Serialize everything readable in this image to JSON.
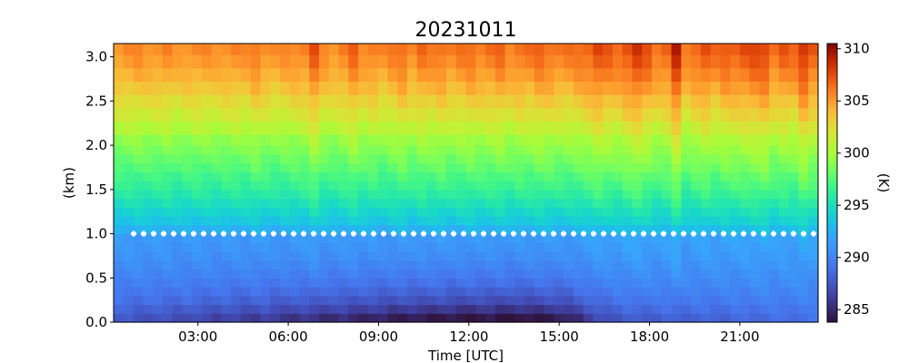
{
  "chart_data": {
    "type": "heatmap",
    "title": "20231011",
    "xlabel": "Time [UTC]",
    "ylabel": "(km)",
    "colorbar_label": "(K)",
    "colormap": "turbo",
    "x_range_hours": [
      0.2,
      23.6
    ],
    "x_ticks": [
      {
        "value": 3,
        "label": "03:00"
      },
      {
        "value": 6,
        "label": "06:00"
      },
      {
        "value": 9,
        "label": "09:00"
      },
      {
        "value": 12,
        "label": "12:00"
      },
      {
        "value": 15,
        "label": "15:00"
      },
      {
        "value": 18,
        "label": "18:00"
      },
      {
        "value": 21,
        "label": "21:00"
      }
    ],
    "y_range_km": [
      0,
      3.15
    ],
    "y_ticks": [
      {
        "value": 0.0,
        "label": "0.0"
      },
      {
        "value": 0.5,
        "label": "0.5"
      },
      {
        "value": 1.0,
        "label": "1.0"
      },
      {
        "value": 1.5,
        "label": "1.5"
      },
      {
        "value": 2.0,
        "label": "2.0"
      },
      {
        "value": 2.5,
        "label": "2.5"
      },
      {
        "value": 3.0,
        "label": "3.0"
      }
    ],
    "color_range_K": [
      283.8,
      310.5
    ],
    "colorbar_ticks": [
      {
        "value": 285,
        "label": "285"
      },
      {
        "value": 290,
        "label": "290"
      },
      {
        "value": 295,
        "label": "295"
      },
      {
        "value": 300,
        "label": "300"
      },
      {
        "value": 305,
        "label": "305"
      },
      {
        "value": 310,
        "label": "310"
      }
    ],
    "grid": false,
    "reference_line": {
      "y_km": 1.0,
      "style": "white dotted"
    },
    "levels_km": [
      0.05,
      0.15,
      0.25,
      0.35,
      0.45,
      0.55,
      0.65,
      0.75,
      0.85,
      0.95,
      1.05,
      1.15,
      1.25,
      1.35,
      1.45,
      1.55,
      1.65,
      1.75,
      1.85,
      1.95,
      2.05,
      2.2,
      2.35,
      2.5,
      2.65,
      2.8,
      2.95,
      3.1
    ],
    "time_steps": 72,
    "base_profile_K": [
      288.0,
      288.6,
      289.2,
      289.6,
      290.0,
      290.3,
      290.6,
      290.9,
      291.1,
      291.3,
      292.6,
      293.6,
      294.3,
      295.0,
      295.7,
      296.3,
      296.8,
      297.4,
      297.9,
      298.5,
      299.1,
      300.3,
      301.4,
      302.3,
      303.3,
      304.1,
      304.8,
      305.3
    ],
    "column_offset_K": [
      0.0,
      0.2,
      0.3,
      0.1,
      0.2,
      0.4,
      -0.2,
      0.1,
      0.3,
      0.2,
      0.0,
      0.3,
      0.4,
      0.2,
      0.9,
      0.3,
      0.0,
      0.3,
      0.5,
      0.6,
      2.0,
      0.4,
      0.1,
      0.6,
      1.5,
      0.4,
      0.8,
      0.2,
      0.7,
      1.3,
      0.4,
      1.2,
      0.8,
      1.2,
      0.6,
      0.9,
      1.2,
      0.8,
      1.0,
      1.4,
      0.6,
      1.1,
      1.0,
      1.5,
      1.2,
      0.9,
      0.9,
      1.2,
      1.6,
      2.4,
      1.8,
      1.4,
      2.2,
      3.0,
      2.1,
      1.1,
      1.5,
      3.8,
      0.7,
      1.5,
      2.1,
      1.2,
      1.9,
      1.8,
      2.1,
      2.4,
      2.6,
      1.2,
      1.8,
      1.4,
      3.2,
      1.8
    ],
    "surface_anomaly_K": [
      -0.5,
      -0.6,
      -0.8,
      -0.9,
      -1.0,
      -1.0,
      -1.3,
      -1.2,
      -1.5,
      -1.6,
      -1.8,
      -1.8,
      -2.0,
      -2.2,
      -2.2,
      -2.0,
      -2.5,
      -2.6,
      -2.8,
      -2.7,
      -3.0,
      -3.1,
      -3.3,
      -3.2,
      -3.5,
      -3.6,
      -3.8,
      -3.8,
      -4.0,
      -4.1,
      -4.2,
      -4.3,
      -4.3,
      -4.4,
      -4.5,
      -4.6,
      -4.7,
      -4.6,
      -4.5,
      -4.7,
      -4.8,
      -4.8,
      -4.6,
      -4.5,
      -4.3,
      -4.2,
      -3.7,
      -3.0,
      -2.2,
      -1.5,
      -1.0,
      -0.6,
      -0.4,
      -0.3,
      -0.2,
      -0.1,
      0.0,
      0.0,
      0.1,
      0.1,
      0.2,
      0.3,
      0.3,
      0.4,
      0.5,
      0.6,
      0.7,
      0.8,
      0.8,
      0.9,
      1.0,
      1.0
    ]
  }
}
